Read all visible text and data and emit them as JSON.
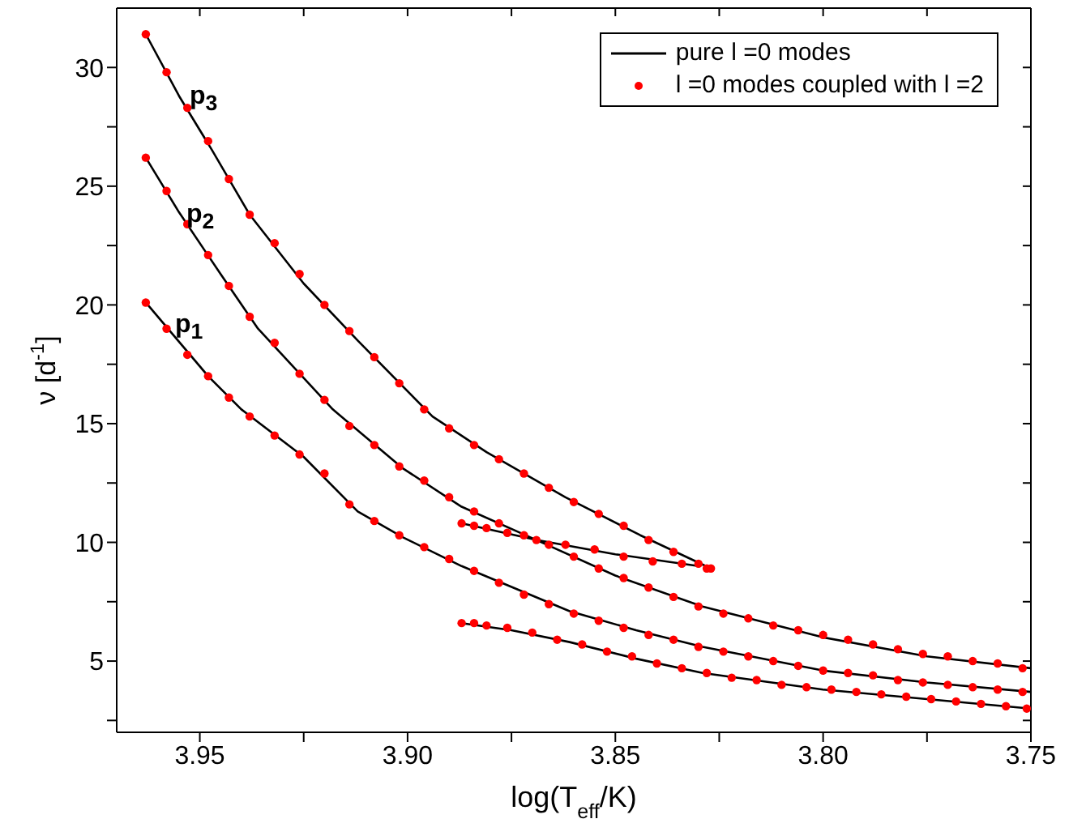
{
  "chart_data": {
    "type": "scatter",
    "xlabel": "log(T$_{eff}$/K)",
    "ylabel": "ν [d$^{-1}$]",
    "xlim": [
      3.97,
      3.75
    ],
    "xticks": [
      {
        "value": 3.95,
        "label": "3.95"
      },
      {
        "value": 3.925,
        "label": null
      },
      {
        "value": 3.9,
        "label": "3.90"
      },
      {
        "value": 3.875,
        "label": null
      },
      {
        "value": 3.85,
        "label": "3.85"
      },
      {
        "value": 3.825,
        "label": null
      },
      {
        "value": 3.8,
        "label": "3.80"
      },
      {
        "value": 3.775,
        "label": null
      },
      {
        "value": 3.75,
        "label": "3.75"
      }
    ],
    "ylim": [
      2,
      32.5
    ],
    "yticks": [
      {
        "value": 2.5,
        "label": null
      },
      5,
      {
        "value": 7.5,
        "label": null
      },
      10,
      {
        "value": 12.5,
        "label": null
      },
      15,
      {
        "value": 17.5,
        "label": null
      },
      20,
      {
        "value": 22.5,
        "label": null
      },
      25,
      {
        "value": 27.5,
        "label": null
      },
      30
    ],
    "legend": "top right",
    "annotations": [
      "p$_{3}$",
      "p$_{2}$",
      "p$_{1}$"
    ],
    "series": [
      {
        "name": "pure l =0 modes",
        "type": "line",
        "color": "#000000",
        "marker": "none",
        "line_style": "solid",
        "x": [
          3.963,
          3.955,
          3.947,
          3.938,
          3.925,
          3.912,
          3.894,
          3.881,
          3.862,
          3.844,
          3.827,
          null,
          3.963,
          3.955,
          3.945,
          3.936,
          3.918,
          3.901,
          3.887,
          3.869,
          3.85,
          3.829,
          3.8,
          3.775,
          3.75,
          null,
          3.963,
          3.948,
          3.94,
          3.925,
          3.912,
          3.901,
          3.887,
          3.861,
          3.845,
          3.829,
          3.8,
          3.775,
          3.75,
          null,
          3.887,
          3.869,
          3.85,
          3.83,
          null,
          3.887,
          3.875,
          3.861,
          3.845,
          3.829,
          3.8,
          3.775,
          3.75
        ],
        "values": [
          31.4,
          28.8,
          26.5,
          23.8,
          20.9,
          18.5,
          15.3,
          13.8,
          11.9,
          10.3,
          8.9,
          null,
          26.2,
          23.9,
          21.3,
          19.0,
          15.6,
          13.1,
          11.5,
          10.1,
          8.6,
          7.3,
          6.0,
          5.2,
          4.7,
          null,
          20.1,
          17.0,
          15.6,
          13.6,
          11.3,
          10.2,
          9.0,
          7.1,
          6.3,
          5.6,
          4.6,
          4.1,
          3.7,
          null,
          10.8,
          10.1,
          9.5,
          9.0,
          null,
          6.6,
          6.3,
          5.8,
          5.1,
          4.5,
          3.8,
          3.4,
          3.0
        ]
      },
      {
        "name": "l =0 modes coupled with l =2",
        "color": "#ff0000",
        "marker": "circle",
        "x": [
          3.963,
          3.958,
          3.953,
          3.948,
          3.943,
          3.938,
          3.932,
          3.926,
          3.92,
          3.914,
          3.908,
          3.902,
          3.896,
          3.89,
          3.884,
          3.878,
          3.872,
          3.866,
          3.86,
          3.854,
          3.848,
          3.842,
          3.836,
          3.83,
          3.827,
          3.963,
          3.958,
          3.953,
          3.948,
          3.943,
          3.938,
          3.932,
          3.926,
          3.92,
          3.914,
          3.908,
          3.902,
          3.896,
          3.89,
          3.884,
          3.878,
          3.872,
          3.866,
          3.86,
          3.854,
          3.848,
          3.842,
          3.836,
          3.83,
          3.824,
          3.818,
          3.812,
          3.806,
          3.8,
          3.794,
          3.788,
          3.782,
          3.776,
          3.77,
          3.764,
          3.758,
          3.752,
          3.963,
          3.958,
          3.953,
          3.948,
          3.943,
          3.938,
          3.932,
          3.926,
          3.92,
          3.914,
          3.908,
          3.902,
          3.896,
          3.89,
          3.884,
          3.878,
          3.872,
          3.866,
          3.86,
          3.854,
          3.848,
          3.842,
          3.836,
          3.83,
          3.824,
          3.818,
          3.812,
          3.806,
          3.8,
          3.794,
          3.788,
          3.782,
          3.776,
          3.77,
          3.764,
          3.758,
          3.752,
          3.887,
          3.884,
          3.881,
          3.876,
          3.869,
          3.862,
          3.855,
          3.848,
          3.841,
          3.834,
          3.828,
          3.887,
          3.884,
          3.881,
          3.876,
          3.87,
          3.864,
          3.858,
          3.852,
          3.846,
          3.84,
          3.834,
          3.828,
          3.822,
          3.816,
          3.81,
          3.804,
          3.798,
          3.792,
          3.786,
          3.78,
          3.774,
          3.768,
          3.762,
          3.756,
          3.751
        ],
        "values": [
          31.4,
          29.8,
          28.3,
          26.9,
          25.3,
          23.8,
          22.6,
          21.3,
          20.0,
          18.9,
          17.8,
          16.7,
          15.6,
          14.8,
          14.1,
          13.5,
          12.9,
          12.3,
          11.7,
          11.2,
          10.7,
          10.1,
          9.6,
          9.1,
          8.9,
          26.2,
          24.8,
          23.4,
          22.1,
          20.8,
          19.5,
          18.4,
          17.1,
          16.0,
          14.9,
          14.1,
          13.2,
          12.6,
          11.9,
          11.3,
          10.8,
          10.3,
          9.9,
          9.4,
          8.9,
          8.5,
          8.1,
          7.7,
          7.3,
          7.0,
          6.8,
          6.5,
          6.3,
          6.1,
          5.9,
          5.7,
          5.5,
          5.3,
          5.2,
          5.0,
          4.9,
          4.7,
          20.1,
          19.0,
          17.9,
          17.0,
          16.1,
          15.3,
          14.5,
          13.7,
          12.9,
          11.6,
          10.9,
          10.3,
          9.8,
          9.3,
          8.8,
          8.3,
          7.8,
          7.4,
          7.0,
          6.7,
          6.4,
          6.1,
          5.9,
          5.6,
          5.4,
          5.2,
          5.0,
          4.8,
          4.6,
          4.5,
          4.4,
          4.2,
          4.1,
          4.0,
          3.9,
          3.8,
          3.7,
          10.8,
          10.7,
          10.6,
          10.4,
          10.1,
          9.9,
          9.7,
          9.4,
          9.2,
          9.1,
          8.9,
          6.6,
          6.6,
          6.5,
          6.4,
          6.2,
          5.9,
          5.7,
          5.4,
          5.2,
          4.9,
          4.7,
          4.5,
          4.3,
          4.2,
          4.0,
          3.9,
          3.8,
          3.7,
          3.6,
          3.5,
          3.4,
          3.3,
          3.2,
          3.1,
          3.0
        ]
      }
    ]
  }
}
